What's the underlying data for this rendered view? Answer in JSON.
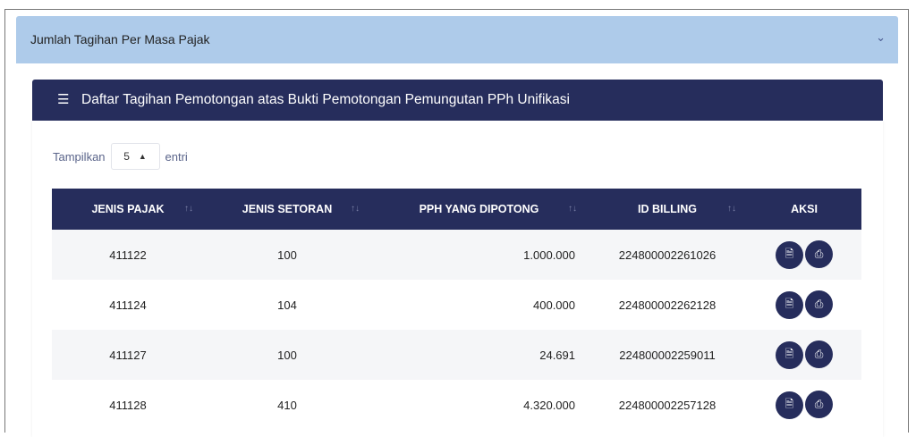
{
  "accordion": {
    "title": "Jumlah Tagihan Per Masa Pajak"
  },
  "card": {
    "title": "Daftar Tagihan Pemotongan atas Bukti Pemotongan Pemungutan PPh Unifikasi"
  },
  "length": {
    "prefix": "Tampilkan",
    "value": "5",
    "suffix": "entri"
  },
  "table": {
    "headers": [
      "JENIS PAJAK",
      "JENIS SETORAN",
      "PPH YANG DIPOTONG",
      "ID BILLING",
      "AKSI"
    ],
    "rows": [
      [
        "411122",
        "100",
        "1.000.000",
        "224800002261026"
      ],
      [
        "411124",
        "104",
        "400.000",
        "224800002262128"
      ],
      [
        "411127",
        "100",
        "24.691",
        "224800002259011"
      ],
      [
        "411128",
        "410",
        "4.320.000",
        "224800002257128"
      ]
    ]
  },
  "colors": {
    "accordion": "#aecbea",
    "navy": "#262d5c"
  }
}
